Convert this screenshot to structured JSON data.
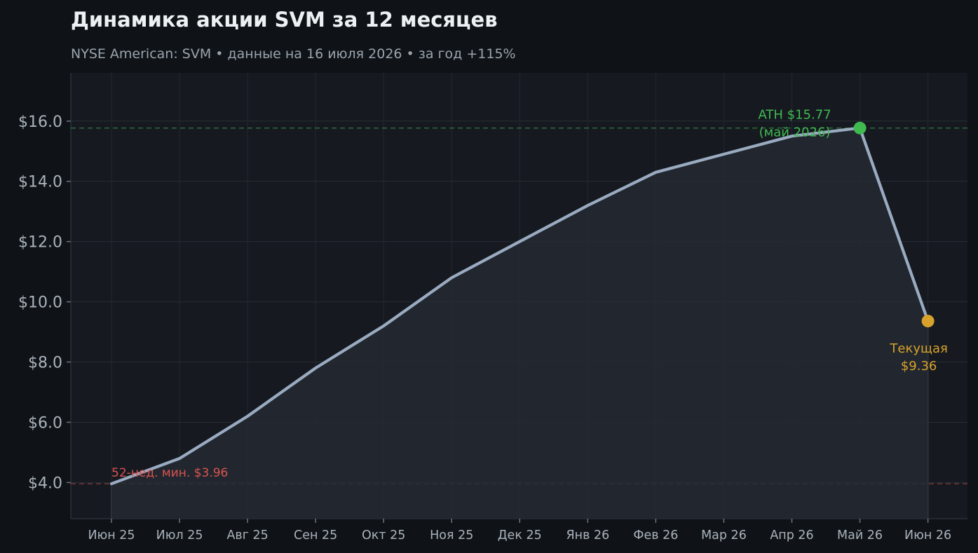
{
  "chart_data": {
    "type": "line",
    "title": "Динамика акции SVM за 12 месяцев",
    "subtitle": "NYSE American: SVM  •  данные на 16 июля 2026  •  за год +115%",
    "categories": [
      "Июн 25",
      "Июл 25",
      "Авг 25",
      "Сен 25",
      "Окт 25",
      "Ноя 25",
      "Дек 25",
      "Янв 26",
      "Фев 26",
      "Мар 26",
      "Апр 26",
      "Май 26",
      "Июн 26"
    ],
    "series": [
      {
        "values": [
          3.96,
          4.8,
          6.2,
          7.8,
          9.2,
          10.8,
          12.0,
          13.2,
          14.3,
          14.9,
          15.5,
          15.77,
          9.36
        ]
      }
    ],
    "yticks": [
      "$4.0",
      "$6.0",
      "$8.0",
      "$10.0",
      "$12.0",
      "$14.0",
      "$16.0"
    ],
    "ytick_values": [
      4,
      6,
      8,
      10,
      12,
      14,
      16
    ],
    "ylim": [
      2.8,
      17.6
    ],
    "grid": true,
    "reference_lines": [
      {
        "value": 15.77,
        "color": "#3fb950"
      },
      {
        "value": 3.96,
        "color": "#d9534f"
      }
    ],
    "annotations": {
      "ath_line1": "ATH $15.77",
      "ath_line2": "(май 2026)",
      "current_line1": "Текущая",
      "current_line2": "$9.36",
      "min_label": "52-нед. мин. $3.96"
    },
    "colors": {
      "background": "#0f1317",
      "plot_bg": "#161a20",
      "line": "#9aabc1",
      "ath": "#3fb950",
      "current": "#d9a22b",
      "min": "#d9534f"
    }
  }
}
